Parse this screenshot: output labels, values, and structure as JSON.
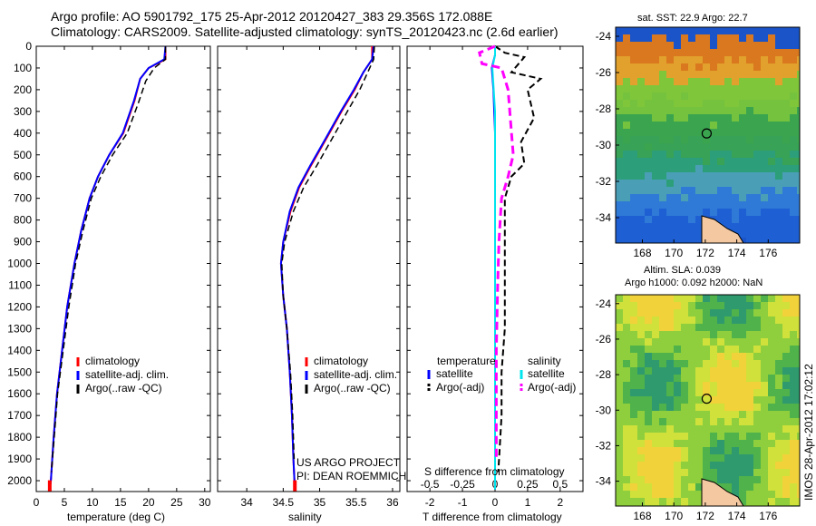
{
  "header": {
    "line1": "Argo profile: AO 5901792_175 25-Apr-2012 20120427_383 29.356S 172.088E",
    "line2": "Climatology: CARS2009. Satellite-adjusted climatology: synTS_20120423.nc (2.6d earlier)"
  },
  "panel1": {
    "xlabel": "temperature (deg C)",
    "xticks": [
      "0",
      "5",
      "10",
      "15",
      "20",
      "25",
      "30"
    ],
    "yticks": [
      "0",
      "100",
      "200",
      "300",
      "400",
      "500",
      "600",
      "700",
      "800",
      "900",
      "1000",
      "1100",
      "1200",
      "1300",
      "1400",
      "1500",
      "1600",
      "1700",
      "1800",
      "1900",
      "2000"
    ],
    "legend": [
      "climatology",
      "satellite-adj. clim.",
      "Argo(..raw -QC)"
    ]
  },
  "panel2": {
    "xlabel": "salinity",
    "xticks": [
      "34",
      "34.5",
      "35",
      "35.5",
      "36"
    ],
    "legend": [
      "climatology",
      "satellite-adj. clim.",
      "Argo(..raw -QC)"
    ],
    "credit1": "US ARGO PROJECT",
    "credit2": "PI: DEAN ROEMMICH"
  },
  "panel3": {
    "xlabel": "T difference from climatology",
    "xlabel_top": "S difference from climatology",
    "xticks": [
      "-2",
      "-1",
      "0",
      "1",
      "2"
    ],
    "xticks_top": [
      "-0.5",
      "-0.25",
      "0",
      "0.25",
      "0.5"
    ],
    "legend_temp_head": "temperature",
    "legend_temp": [
      "satellite",
      "Argo(-adj)"
    ],
    "legend_sal_head": "salinity",
    "legend_sal": [
      "satellite",
      "Argo(-adj)"
    ]
  },
  "map1": {
    "title": "sat. SST: 22.9 Argo: 22.7",
    "yticks": [
      "-24",
      "-26",
      "-28",
      "-30",
      "-32",
      "-34"
    ],
    "xticks": [
      "168",
      "170",
      "172",
      "174",
      "176"
    ]
  },
  "map2": {
    "title1": "Altim. SLA: 0.039",
    "title2": "Argo h1000: 0.092 h2000: NaN",
    "yticks": [
      "-24",
      "-26",
      "-28",
      "-30",
      "-32",
      "-34"
    ],
    "xticks": [
      "168",
      "170",
      "172",
      "174",
      "176"
    ],
    "side": "IMOS 28-Apr-2012 17:02:12"
  },
  "colors": {
    "climatology": "#ff0000",
    "satellite_adj": "#0000ff",
    "argo": "#000000",
    "salinity_satellite": "#00e5ee",
    "salinity_argo": "#ff00ff"
  },
  "chart_data": [
    {
      "type": "line",
      "name": "temperature profile",
      "xlim": [
        0,
        31
      ],
      "ylim": [
        2050,
        0
      ],
      "xlabel": "temperature (deg C)",
      "ylabel": "",
      "series": [
        {
          "name": "climatology",
          "points": [
            [
              23,
              0
            ],
            [
              23,
              60
            ],
            [
              20,
              100
            ],
            [
              18.5,
              150
            ],
            [
              17.5,
              250
            ],
            [
              15.5,
              400
            ],
            [
              13,
              500
            ],
            [
              11,
              600
            ],
            [
              9.5,
              700
            ],
            [
              8,
              850
            ],
            [
              6.8,
              1000
            ],
            [
              5.5,
              1200
            ],
            [
              4.6,
              1400
            ],
            [
              3.7,
              1600
            ],
            [
              3.1,
              1800
            ],
            [
              2.6,
              2000
            ],
            [
              2.4,
              2040
            ]
          ]
        },
        {
          "name": "satellite-adj. clim.",
          "points": [
            [
              23,
              0
            ],
            [
              22.8,
              60
            ],
            [
              20,
              100
            ],
            [
              18.5,
              150
            ],
            [
              17.4,
              250
            ],
            [
              15.4,
              400
            ],
            [
              13,
              500
            ],
            [
              11,
              600
            ],
            [
              9.5,
              700
            ],
            [
              8,
              850
            ],
            [
              6.8,
              1000
            ],
            [
              5.5,
              1200
            ],
            [
              4.6,
              1400
            ],
            [
              3.7,
              1600
            ],
            [
              3.1,
              1800
            ],
            [
              2.6,
              2000
            ],
            [
              2.4,
              2040
            ]
          ]
        },
        {
          "name": "Argo(..raw -QC)",
          "points": [
            [
              23,
              0
            ],
            [
              23,
              60
            ],
            [
              21,
              100
            ],
            [
              19.5,
              160
            ],
            [
              18.2,
              260
            ],
            [
              16.2,
              400
            ],
            [
              13.6,
              500
            ],
            [
              11.5,
              600
            ],
            [
              9.8,
              700
            ],
            [
              8.3,
              850
            ],
            [
              7,
              1000
            ],
            [
              5.8,
              1200
            ],
            [
              4.8,
              1400
            ],
            [
              3.8,
              1600
            ],
            [
              3.2,
              1800
            ],
            [
              2.7,
              1960
            ]
          ]
        }
      ]
    },
    {
      "type": "line",
      "name": "salinity profile",
      "xlim": [
        33.6,
        36.1
      ],
      "ylim": [
        2050,
        0
      ],
      "xlabel": "salinity",
      "series": [
        {
          "name": "climatology",
          "points": [
            [
              35.72,
              0
            ],
            [
              35.72,
              60
            ],
            [
              35.6,
              120
            ],
            [
              35.48,
              200
            ],
            [
              35.3,
              300
            ],
            [
              35.1,
              420
            ],
            [
              34.88,
              550
            ],
            [
              34.72,
              650
            ],
            [
              34.6,
              760
            ],
            [
              34.5,
              900
            ],
            [
              34.47,
              1000
            ],
            [
              34.5,
              1150
            ],
            [
              34.55,
              1300
            ],
            [
              34.59,
              1500
            ],
            [
              34.62,
              1700
            ],
            [
              34.64,
              1900
            ],
            [
              34.66,
              2040
            ]
          ]
        },
        {
          "name": "satellite-adj. clim.",
          "points": [
            [
              35.74,
              0
            ],
            [
              35.72,
              60
            ],
            [
              35.6,
              120
            ],
            [
              35.47,
              200
            ],
            [
              35.29,
              300
            ],
            [
              35.09,
              420
            ],
            [
              34.87,
              550
            ],
            [
              34.71,
              650
            ],
            [
              34.59,
              760
            ],
            [
              34.5,
              900
            ],
            [
              34.47,
              1000
            ],
            [
              34.5,
              1150
            ],
            [
              34.55,
              1300
            ],
            [
              34.59,
              1500
            ],
            [
              34.62,
              1700
            ],
            [
              34.64,
              1900
            ],
            [
              34.66,
              2040
            ]
          ]
        },
        {
          "name": "Argo(..raw -QC)",
          "points": [
            [
              35.75,
              0
            ],
            [
              35.74,
              60
            ],
            [
              35.66,
              120
            ],
            [
              35.55,
              200
            ],
            [
              35.38,
              300
            ],
            [
              35.18,
              420
            ],
            [
              34.96,
              550
            ],
            [
              34.78,
              650
            ],
            [
              34.64,
              760
            ],
            [
              34.52,
              900
            ],
            [
              34.48,
              1000
            ],
            [
              34.5,
              1150
            ],
            [
              34.55,
              1300
            ],
            [
              34.6,
              1500
            ],
            [
              34.63,
              1700
            ],
            [
              34.65,
              1900
            ]
          ]
        }
      ]
    },
    {
      "type": "line",
      "name": "difference from climatology",
      "xlim": [
        -2.7,
        2.7
      ],
      "ylim": [
        2050,
        0
      ],
      "xlabel": "T difference from climatology",
      "xlabel_top": "S difference from climatology",
      "series": [
        {
          "name": "temperature satellite",
          "points": [
            [
              0,
              0
            ],
            [
              0,
              40
            ],
            [
              -0.1,
              100
            ],
            [
              -0.05,
              200
            ],
            [
              0,
              400
            ],
            [
              0,
              1000
            ],
            [
              0,
              2040
            ]
          ]
        },
        {
          "name": "temperature Argo(-adj)",
          "points": [
            [
              0,
              0
            ],
            [
              0.3,
              30
            ],
            [
              0.9,
              50
            ],
            [
              0.5,
              120
            ],
            [
              1.4,
              150
            ],
            [
              1,
              200
            ],
            [
              1.2,
              330
            ],
            [
              0.8,
              440
            ],
            [
              0.9,
              540
            ],
            [
              0.5,
              600
            ],
            [
              0.3,
              700
            ],
            [
              0.3,
              900
            ],
            [
              0.3,
              1100
            ],
            [
              0.3,
              1300
            ],
            [
              0.2,
              1500
            ],
            [
              0.2,
              1700
            ],
            [
              0.1,
              1960
            ]
          ]
        },
        {
          "name": "salinity satellite",
          "points": [
            [
              0,
              0
            ],
            [
              0,
              40
            ],
            [
              -0.02,
              100
            ],
            [
              0,
              300
            ],
            [
              0,
              1000
            ],
            [
              0,
              2040
            ]
          ]
        },
        {
          "name": "salinity Argo(-adj)",
          "points": [
            [
              0,
              0
            ],
            [
              -0.12,
              30
            ],
            [
              -0.1,
              80
            ],
            [
              0.05,
              100
            ],
            [
              0.1,
              200
            ],
            [
              0.12,
              350
            ],
            [
              0.14,
              500
            ],
            [
              0.1,
              600
            ],
            [
              0.05,
              700
            ],
            [
              0.03,
              900
            ],
            [
              0.02,
              1100
            ],
            [
              0.01,
              1400
            ],
            [
              0.01,
              1900
            ]
          ]
        }
      ]
    }
  ]
}
